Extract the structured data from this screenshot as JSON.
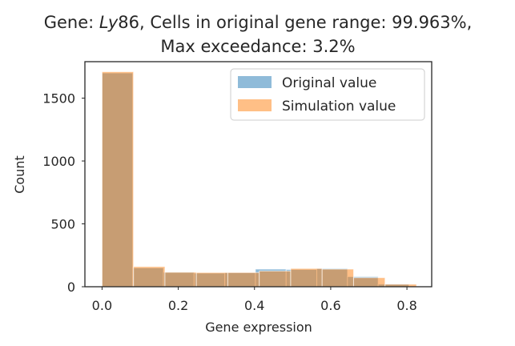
{
  "chart_data": {
    "type": "bar",
    "title_prefix": "Gene: ",
    "title_gene": "Ly",
    "title_suffix": "86, Cells in original gene range: 99.963%,",
    "title_line2": "Max exceedance: 3.2%",
    "xlabel": "Gene expression",
    "ylabel": "Count",
    "xlim": [
      -0.045,
      0.865
    ],
    "ylim": [
      0,
      1790
    ],
    "xticks": [
      "0.0",
      "0.2",
      "0.4",
      "0.6",
      "0.8"
    ],
    "xtick_values": [
      0.0,
      0.2,
      0.4,
      0.6,
      0.8
    ],
    "yticks": [
      "0",
      "500",
      "1000",
      "1500"
    ],
    "ytick_values": [
      0,
      500,
      1000,
      1500
    ],
    "grid": false,
    "legend_position": "top-right",
    "colors": {
      "original": "#1f77b4",
      "simulation": "#ff7f0e",
      "overlap": "#c49a6c",
      "axis": "#262626",
      "bar_edge": "#ffffff"
    },
    "series": [
      {
        "name": "Original value",
        "bins": [
          [
            0.0,
            0.0805,
            1700
          ],
          [
            0.0805,
            0.161,
            150
          ],
          [
            0.161,
            0.2415,
            115
          ],
          [
            0.2415,
            0.322,
            108
          ],
          [
            0.322,
            0.4025,
            112
          ],
          [
            0.4025,
            0.483,
            140
          ],
          [
            0.483,
            0.5635,
            137
          ],
          [
            0.5635,
            0.644,
            145
          ],
          [
            0.644,
            0.7245,
            80
          ],
          [
            0.7245,
            0.805,
            20
          ]
        ]
      },
      {
        "name": "Simulation value",
        "bins": [
          [
            0.0,
            0.0825,
            1710
          ],
          [
            0.0825,
            0.165,
            160
          ],
          [
            0.165,
            0.2475,
            115
          ],
          [
            0.2475,
            0.33,
            113
          ],
          [
            0.33,
            0.4125,
            113
          ],
          [
            0.4125,
            0.495,
            125
          ],
          [
            0.495,
            0.5775,
            145
          ],
          [
            0.5775,
            0.66,
            140
          ],
          [
            0.66,
            0.7425,
            72
          ],
          [
            0.7425,
            0.825,
            20
          ]
        ]
      }
    ]
  }
}
